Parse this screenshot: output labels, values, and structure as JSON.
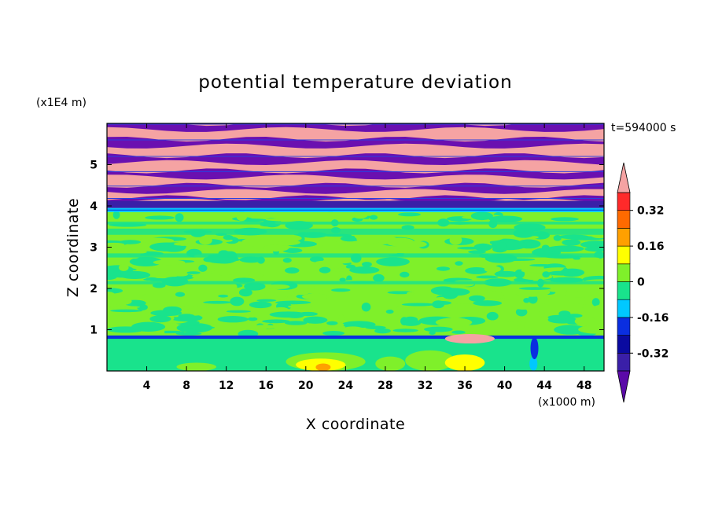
{
  "chart_data": {
    "type": "heatmap",
    "title": "potential temperature deviation",
    "xlabel": "X coordinate",
    "ylabel": "Z coordinate",
    "x_unit": "(x1000 m)",
    "y_unit": "(x1E4 m)",
    "time_label": "t=594000 s",
    "xlim": [
      0,
      50
    ],
    "ylim": [
      0,
      6
    ],
    "x_ticks": [
      4,
      8,
      12,
      16,
      20,
      24,
      28,
      32,
      36,
      40,
      44,
      48
    ],
    "y_ticks": [
      1,
      2,
      3,
      4,
      5
    ],
    "colorbar": {
      "levels": [
        -0.4,
        -0.32,
        -0.24,
        -0.16,
        -0.08,
        0,
        0.08,
        0.16,
        0.24,
        0.32,
        0.4
      ],
      "labels": [
        "0.32",
        "0.16",
        "0",
        "-0.16",
        "-0.32"
      ],
      "label_values": [
        0.32,
        0.16,
        0,
        -0.16,
        -0.32
      ],
      "colors": [
        "#5b0aa8",
        "#3a1fa8",
        "#0a2ee0",
        "#00c8ff",
        "#19e38c",
        "#7ff02a",
        "#ffff00",
        "#ffa000",
        "#ff6a00",
        "#ff2a2a",
        "#f5a3a3"
      ],
      "extend": "both"
    },
    "layers": [
      {
        "z_range": [
          4.1,
          6.0
        ],
        "description_values": [
          -0.4,
          0.4
        ],
        "pattern": "alternating bands"
      },
      {
        "z_range": [
          3.85,
          3.95
        ],
        "values": [
          -0.16,
          -0.08
        ]
      },
      {
        "z_range": [
          0.85,
          3.85
        ],
        "values": [
          -0.08,
          0.08
        ]
      },
      {
        "z_range": [
          0.75,
          0.85
        ],
        "values": [
          -0.32,
          0.4
        ]
      },
      {
        "z_range": [
          0.0,
          0.75
        ],
        "values": [
          -0.16,
          0.24
        ]
      }
    ]
  }
}
